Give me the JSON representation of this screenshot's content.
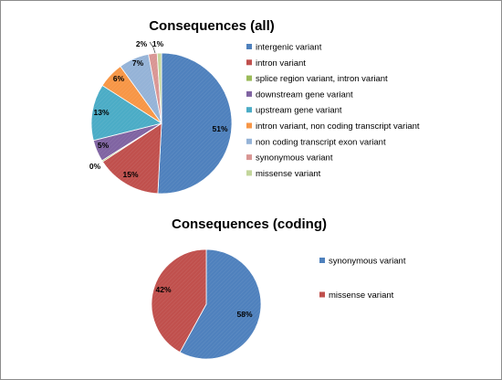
{
  "chart_data": [
    {
      "type": "pie",
      "title": "Consequences (all)",
      "legend_position": "right",
      "series": [
        {
          "name": "intergenic variant",
          "value": 51,
          "label": "51%",
          "color": "#4f81bd"
        },
        {
          "name": "intron variant",
          "value": 15,
          "label": "15%",
          "color": "#c0504d"
        },
        {
          "name": "splice region variant, intron variant",
          "value": 0.3,
          "label": "0%",
          "color": "#9bbb59"
        },
        {
          "name": "downstream gene variant",
          "value": 5,
          "label": "5%",
          "color": "#8064a2"
        },
        {
          "name": "upstream gene variant",
          "value": 13,
          "label": "13%",
          "color": "#4bacc6"
        },
        {
          "name": "intron variant, non coding transcript variant",
          "value": 6,
          "label": "6%",
          "color": "#f79646"
        },
        {
          "name": "non coding transcript exon variant",
          "value": 7,
          "label": "7%",
          "color": "#95b3d7"
        },
        {
          "name": "synonymous variant",
          "value": 2,
          "label": "2%",
          "color": "#d99694"
        },
        {
          "name": "missense variant",
          "value": 1,
          "label": "1%",
          "color": "#c3d69b"
        }
      ]
    },
    {
      "type": "pie",
      "title": "Consequences (coding)",
      "legend_position": "right",
      "series": [
        {
          "name": "synonymous variant",
          "value": 58,
          "label": "58%",
          "color": "#4f81bd"
        },
        {
          "name": "missense variant",
          "value": 42,
          "label": "42%",
          "color": "#c0504d"
        }
      ]
    }
  ]
}
